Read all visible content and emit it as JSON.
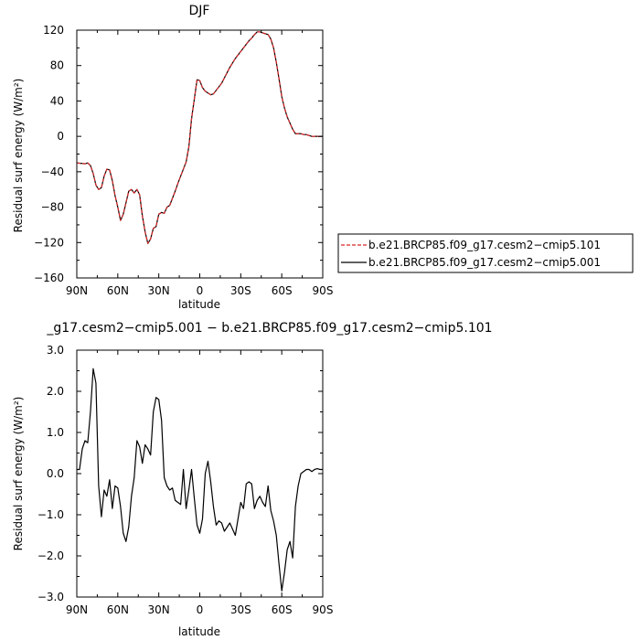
{
  "chart_data": [
    {
      "type": "line",
      "title": "DJF",
      "xlabel": "latitude",
      "ylabel": "Residual surf energy (W/m²)",
      "ylim": [
        -160,
        120
      ],
      "yticks": [
        -160,
        -120,
        -80,
        -40,
        0,
        40,
        80,
        120
      ],
      "ytick_labels": [
        "−160",
        "−120",
        "−80",
        "−40",
        "0",
        "40",
        "80",
        "120"
      ],
      "xlim": [
        90,
        -90
      ],
      "xticks": [
        90,
        60,
        30,
        0,
        -30,
        -60,
        -90
      ],
      "xtick_labels": [
        "90N",
        "60N",
        "30N",
        "0",
        "30S",
        "60S",
        "90S"
      ],
      "grid": false,
      "legend_position": "right",
      "series": [
        {
          "name": "b.e21.BRCP85.f09_g17.cesm2−cmip5.101",
          "color": "#d62728",
          "dash": "dashed",
          "x": [
            90,
            84,
            82,
            80,
            78,
            76,
            74,
            72,
            70,
            68,
            66,
            64,
            62,
            60,
            58,
            56,
            54,
            52,
            50,
            48,
            46,
            44,
            42,
            40,
            38,
            36,
            34,
            32,
            30,
            28,
            26,
            24,
            22,
            20,
            18,
            16,
            14,
            12,
            10,
            8,
            6,
            4,
            2,
            0,
            -2,
            -4,
            -6,
            -8,
            -10,
            -12,
            -14,
            -16,
            -18,
            -20,
            -22,
            -24,
            -26,
            -28,
            -30,
            -32,
            -34,
            -36,
            -38,
            -40,
            -42,
            -44,
            -46,
            -48,
            -50,
            -52,
            -54,
            -56,
            -58,
            -60,
            -62,
            -64,
            -66,
            -68,
            -70,
            -72,
            -74,
            -76,
            -78,
            -80,
            -82,
            -84,
            -86,
            -88,
            -90
          ],
          "y": [
            -30,
            -31,
            -30,
            -33,
            -42,
            -55,
            -60,
            -58,
            -45,
            -37,
            -38,
            -50,
            -67,
            -80,
            -95,
            -88,
            -75,
            -62,
            -60,
            -64,
            -60,
            -66,
            -90,
            -108,
            -121,
            -116,
            -104,
            -102,
            -88,
            -86,
            -87,
            -80,
            -78,
            -70,
            -62,
            -53,
            -45,
            -37,
            -29,
            -12,
            20,
            42,
            64,
            63,
            55,
            51,
            49,
            47,
            48,
            52,
            56,
            60,
            66,
            72,
            78,
            83,
            88,
            92,
            96,
            100,
            104,
            108,
            111,
            115,
            118,
            118,
            117,
            116,
            115,
            110,
            100,
            84,
            65,
            45,
            32,
            22,
            15,
            8,
            3,
            3,
            3,
            2,
            2,
            1,
            0,
            0,
            0,
            0,
            0
          ]
        },
        {
          "name": "b.e21.BRCP85.f09_g17.cesm2−cmip5.001",
          "color": "#000000",
          "dash": "solid",
          "x": [
            90,
            84,
            82,
            80,
            78,
            76,
            74,
            72,
            70,
            68,
            66,
            64,
            62,
            60,
            58,
            56,
            54,
            52,
            50,
            48,
            46,
            44,
            42,
            40,
            38,
            36,
            34,
            32,
            30,
            28,
            26,
            24,
            22,
            20,
            18,
            16,
            14,
            12,
            10,
            8,
            6,
            4,
            2,
            0,
            -2,
            -4,
            -6,
            -8,
            -10,
            -12,
            -14,
            -16,
            -18,
            -20,
            -22,
            -24,
            -26,
            -28,
            -30,
            -32,
            -34,
            -36,
            -38,
            -40,
            -42,
            -44,
            -46,
            -48,
            -50,
            -52,
            -54,
            -56,
            -58,
            -60,
            -62,
            -64,
            -66,
            -68,
            -70,
            -72,
            -74,
            -76,
            -78,
            -80,
            -82,
            -84,
            -86,
            -88,
            -90
          ],
          "y": [
            -30,
            -31,
            -30,
            -33,
            -42,
            -55,
            -60,
            -58,
            -45,
            -37,
            -38,
            -50,
            -67,
            -80,
            -95,
            -88,
            -75,
            -62,
            -60,
            -64,
            -60,
            -66,
            -90,
            -108,
            -121,
            -116,
            -104,
            -102,
            -88,
            -86,
            -87,
            -80,
            -78,
            -70,
            -62,
            -53,
            -45,
            -37,
            -29,
            -12,
            20,
            42,
            64,
            63,
            55,
            51,
            49,
            47,
            48,
            52,
            56,
            60,
            66,
            72,
            78,
            83,
            88,
            92,
            96,
            100,
            104,
            108,
            111,
            115,
            118,
            118,
            117,
            116,
            115,
            110,
            100,
            84,
            65,
            45,
            32,
            22,
            15,
            8,
            3,
            3,
            3,
            2,
            2,
            1,
            0,
            0,
            0,
            0,
            0
          ]
        }
      ]
    },
    {
      "type": "line",
      "title": "_g17.cesm2−cmip5.001 − b.e21.BRCP85.f09_g17.cesm2−cmip5.101",
      "xlabel": "latitude",
      "ylabel": "Residual surf energy (W/m²)",
      "ylim": [
        -3.0,
        3.0
      ],
      "yticks": [
        -3.0,
        -2.0,
        -1.0,
        0.0,
        1.0,
        2.0,
        3.0
      ],
      "ytick_labels": [
        "−3.0",
        "−2.0",
        "−1.0",
        "0.0",
        "1.0",
        "2.0",
        "3.0"
      ],
      "xlim": [
        90,
        -90
      ],
      "xticks": [
        90,
        60,
        30,
        0,
        -30,
        -60,
        -90
      ],
      "xtick_labels": [
        "90N",
        "60N",
        "30N",
        "0",
        "30S",
        "60S",
        "90S"
      ],
      "grid": false,
      "series": [
        {
          "color": "#000000",
          "x": [
            90,
            88,
            86,
            84,
            82,
            80,
            78,
            76,
            74,
            72,
            70,
            68,
            66,
            64,
            62,
            60,
            58,
            56,
            54,
            52,
            50,
            48,
            46,
            44,
            42,
            40,
            38,
            36,
            34,
            32,
            30,
            28,
            26,
            24,
            22,
            20,
            18,
            16,
            14,
            12,
            10,
            8,
            6,
            4,
            2,
            0,
            -2,
            -4,
            -6,
            -8,
            -10,
            -12,
            -14,
            -16,
            -18,
            -20,
            -22,
            -24,
            -26,
            -28,
            -30,
            -32,
            -34,
            -36,
            -38,
            -40,
            -42,
            -44,
            -46,
            -48,
            -50,
            -52,
            -54,
            -56,
            -58,
            -60,
            -62,
            -64,
            -66,
            -68,
            -70,
            -72,
            -74,
            -76,
            -78,
            -80,
            -82,
            -84,
            -86,
            -88,
            -90
          ],
          "y": [
            0.1,
            0.1,
            0.6,
            0.8,
            0.75,
            1.5,
            2.55,
            2.2,
            -0.3,
            -1.05,
            -0.4,
            -0.55,
            -0.15,
            -0.85,
            -0.3,
            -0.35,
            -0.8,
            -1.45,
            -1.65,
            -1.3,
            -0.55,
            -0.1,
            0.8,
            0.65,
            0.25,
            0.7,
            0.6,
            0.45,
            1.5,
            1.85,
            1.8,
            1.3,
            -0.1,
            -0.3,
            -0.4,
            -0.35,
            -0.65,
            -0.7,
            -0.75,
            0.1,
            -0.85,
            -0.4,
            0.1,
            -0.6,
            -1.25,
            -1.45,
            -1.1,
            0.0,
            0.3,
            -0.2,
            -0.8,
            -1.25,
            -1.15,
            -1.2,
            -1.4,
            -1.3,
            -1.2,
            -1.35,
            -1.5,
            -1.1,
            -0.7,
            -0.85,
            -0.25,
            -0.2,
            -0.25,
            -0.85,
            -0.65,
            -0.55,
            -0.7,
            -0.8,
            -0.3,
            -0.9,
            -1.15,
            -1.5,
            -2.2,
            -2.85,
            -2.4,
            -1.85,
            -1.65,
            -2.05,
            -0.8,
            -0.3,
            0.0,
            0.05,
            0.1,
            0.1,
            0.05,
            0.1,
            0.12,
            0.1,
            0.1
          ]
        }
      ]
    }
  ]
}
